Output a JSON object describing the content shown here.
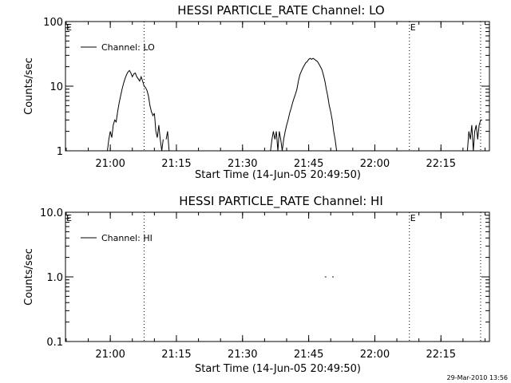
{
  "footer": {
    "timestamp": "29-Mar-2010 13:56"
  },
  "chart_data": [
    {
      "type": "line",
      "title": "HESSI PARTICLE_RATE Channel: LO",
      "xlabel": "Start Time (14-Jun-05 20:49:50)",
      "ylabel": "Counts/sec",
      "yscale": "log",
      "xlim": [
        "20:49:50",
        "22:26:00"
      ],
      "ylim": [
        1,
        100
      ],
      "xticks": [
        "21:00",
        "21:15",
        "21:30",
        "21:45",
        "22:00",
        "22:15"
      ],
      "yticks": [
        "1",
        "10",
        "100"
      ],
      "legend": {
        "position": "top-left",
        "entries": [
          "Channel: LO"
        ]
      },
      "vlines": [
        "21:07:40",
        "22:07:50",
        "22:24:00"
      ],
      "annotations": [
        {
          "text": "E",
          "at": "20:49:50"
        },
        {
          "text": "E",
          "at": "22:07:50"
        }
      ],
      "series": [
        {
          "name": "Channel: LO",
          "segments": [
            {
              "x": [
                "20:59:20",
                "20:59:40",
                "21:00:00",
                "21:00:20",
                "21:00:40",
                "21:01:00",
                "21:01:20",
                "21:01:40",
                "21:02:00",
                "21:02:20",
                "21:02:40",
                "21:03:00",
                "21:03:20",
                "21:03:40",
                "21:04:00",
                "21:04:20",
                "21:04:40",
                "21:05:00",
                "21:05:20",
                "21:05:40",
                "21:06:00",
                "21:06:20",
                "21:06:40",
                "21:07:00",
                "21:07:20",
                "21:07:40",
                "21:08:00",
                "21:08:20",
                "21:08:40",
                "21:09:00",
                "21:09:20",
                "21:09:40",
                "21:10:00"
              ],
              "y": [
                1.0,
                1.5,
                2.0,
                1.6,
                2.5,
                3.0,
                2.8,
                4.0,
                5.5,
                7.0,
                9.0,
                11,
                13,
                15,
                16.5,
                17.5,
                16,
                14,
                15.5,
                16,
                14,
                13,
                12,
                14,
                12,
                10,
                9.5,
                8.5,
                7.0,
                5.0,
                4.0,
                3.5,
                3.8
              ]
            },
            {
              "x": [
                "21:10:00",
                "21:10:20",
                "21:10:40",
                "21:11:00",
                "21:11:20",
                "21:11:40",
                "21:12:00"
              ],
              "y": [
                3.8,
                2.0,
                1.6,
                2.5,
                1.5,
                1.0,
                1.5
              ]
            },
            {
              "x": [
                "21:12:40",
                "21:13:00",
                "21:13:20"
              ],
              "y": [
                1.5,
                2.0,
                1.0
              ]
            },
            {
              "x": [
                "21:36:20",
                "21:36:40",
                "21:37:00",
                "21:37:20",
                "21:37:40",
                "21:38:00",
                "21:38:20",
                "21:38:40",
                "21:39:00",
                "21:39:20",
                "21:39:40",
                "21:40:00",
                "21:40:20",
                "21:40:40",
                "21:41:00",
                "21:41:20",
                "21:41:40",
                "21:42:00",
                "21:42:20",
                "21:42:40",
                "21:43:00",
                "21:43:20",
                "21:43:40",
                "21:44:00",
                "21:44:20",
                "21:44:40",
                "21:45:00",
                "21:45:20",
                "21:45:40",
                "21:46:00",
                "21:46:20",
                "21:46:40",
                "21:47:00",
                "21:47:20",
                "21:47:40",
                "21:48:00",
                "21:48:20",
                "21:48:40",
                "21:49:00",
                "21:49:20",
                "21:49:40",
                "21:50:00",
                "21:50:20",
                "21:50:40",
                "21:51:00",
                "21:51:20"
              ],
              "y": [
                1.0,
                1.5,
                2.0,
                1.5,
                2.0,
                1.0,
                2.0,
                1.5,
                1.0,
                1.5,
                2.0,
                2.5,
                3.0,
                3.8,
                4.5,
                5.5,
                6.5,
                7.5,
                9.0,
                12,
                15,
                17,
                19,
                21,
                23,
                24,
                26,
                27,
                26,
                27,
                26,
                25,
                24,
                22,
                20,
                18,
                15,
                12,
                9,
                7,
                5,
                4,
                3,
                2,
                1.5,
                1.0
              ]
            },
            {
              "x": [
                "22:21:00",
                "22:21:20",
                "22:21:40",
                "22:22:00",
                "22:22:20",
                "22:22:40",
                "22:23:00",
                "22:23:20",
                "22:23:40",
                "22:24:00",
                "22:24:20"
              ],
              "y": [
                1.0,
                2.0,
                1.5,
                2.5,
                1.0,
                2.0,
                2.5,
                1.5,
                2.5,
                3.0,
                3.0
              ]
            }
          ]
        }
      ]
    },
    {
      "type": "line",
      "title": "HESSI PARTICLE_RATE Channel: HI",
      "xlabel": "Start Time (14-Jun-05 20:49:50)",
      "ylabel": "Counts/sec",
      "yscale": "log",
      "xlim": [
        "20:49:50",
        "22:26:00"
      ],
      "ylim": [
        0.1,
        10.0
      ],
      "xticks": [
        "21:00",
        "21:15",
        "21:30",
        "21:45",
        "22:00",
        "22:15"
      ],
      "yticks": [
        "0.1",
        "1.0",
        "10.0"
      ],
      "legend": {
        "position": "top-left",
        "entries": [
          "Channel: HI"
        ]
      },
      "vlines": [
        "21:07:40",
        "22:07:50",
        "22:24:00"
      ],
      "annotations": [
        {
          "text": "E",
          "at": "20:49:50"
        },
        {
          "text": "E",
          "at": "22:07:50"
        }
      ],
      "series": [
        {
          "name": "Channel: HI",
          "segments": [
            {
              "x": [
                "21:48:40",
                "21:49:00"
              ],
              "y": [
                1.0,
                1.0
              ]
            },
            {
              "x": [
                "21:50:20",
                "21:50:40"
              ],
              "y": [
                1.0,
                1.0
              ]
            }
          ]
        }
      ]
    }
  ]
}
